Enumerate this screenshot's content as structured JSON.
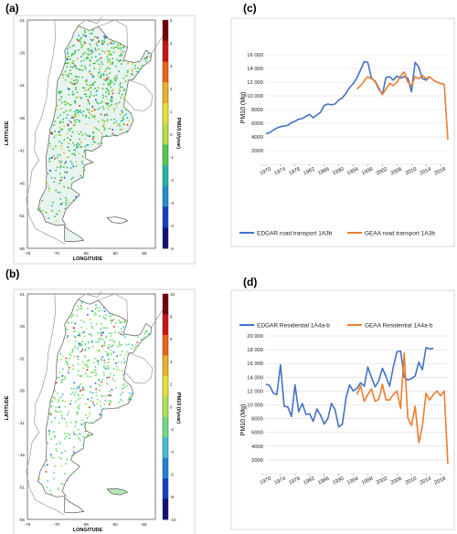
{
  "panels": {
    "a": "(a)",
    "b": "(b)",
    "c": "(c)",
    "d": "(d)"
  },
  "map_a": {
    "ylabel": "LATITUDE",
    "xlabel": "LONGITUDE",
    "lat_ticks": [
      "-21",
      "-26",
      "-31",
      "-36",
      "-41",
      "-46",
      "-51",
      "-56"
    ],
    "lon_ticks": [
      "-75",
      "-70",
      "-65",
      "-60",
      "-55"
    ],
    "colorbar_label": "PM10 (t/year)",
    "colorbar_ticks": [
      "5",
      "4",
      "3",
      "2",
      "1",
      "0",
      "-1",
      "-2",
      "-3",
      "-4",
      "-5"
    ],
    "colors": {
      "low": "#1030c0",
      "mid": "#3cc43c",
      "high": "#c01010"
    }
  },
  "map_b": {
    "ylabel": "LATITUDE",
    "xlabel": "LONGITUDE",
    "lat_ticks": [
      "-21",
      "-26",
      "-31",
      "-36",
      "-41",
      "-46",
      "-51",
      "-56"
    ],
    "lon_ticks": [
      "-75",
      "-70",
      "-65",
      "-60",
      "-55"
    ],
    "colorbar_label": "PM10 (t/year)",
    "colorbar_ticks": [
      "10",
      "8",
      "6",
      "4",
      "2",
      "0",
      "-2",
      "-4",
      "-6",
      "-8",
      "-10"
    ],
    "colors": {
      "low": "#1030c0",
      "mid": "#6fdc6f",
      "high": "#c01010"
    }
  },
  "chart_data": [
    {
      "type": "line",
      "ylabel": "PM10 (Mg)",
      "ylim": [
        0,
        16000
      ],
      "yticks": [
        "-",
        "2000",
        "4000",
        "6000",
        "8000",
        "10 000",
        "12 000",
        "14 000",
        "16 000"
      ],
      "xticks": [
        "1970",
        "1974",
        "1978",
        "1982",
        "1986",
        "1990",
        "1994",
        "1998",
        "2002",
        "2006",
        "2010",
        "2014",
        "2018"
      ],
      "xlim": [
        1970,
        2020
      ],
      "series": [
        {
          "name": "EDGAR road transport 1A3b",
          "color": "#4472c4",
          "x": [
            1970,
            1971,
            1972,
            1973,
            1974,
            1975,
            1976,
            1977,
            1978,
            1979,
            1980,
            1981,
            1982,
            1983,
            1984,
            1985,
            1986,
            1987,
            1988,
            1989,
            1990,
            1991,
            1992,
            1993,
            1994,
            1995,
            1996,
            1997,
            1998,
            1999,
            2000,
            2001,
            2002,
            2003,
            2004,
            2005,
            2006,
            2007,
            2008,
            2009,
            2010,
            2011,
            2012,
            2013,
            2014,
            2015
          ],
          "y": [
            4500,
            4600,
            5000,
            5300,
            5500,
            5600,
            5700,
            6100,
            6300,
            6600,
            6700,
            7000,
            7300,
            6800,
            7200,
            7600,
            8600,
            8800,
            8700,
            8800,
            9400,
            9700,
            10400,
            11200,
            11800,
            12600,
            13800,
            15000,
            14900,
            12600,
            12100,
            11000,
            10200,
            12700,
            12800,
            12300,
            12900,
            12600,
            12800,
            12600,
            10600,
            14900,
            14200,
            12500,
            12300,
            12800
          ]
        },
        {
          "name": "GEAA road transport 1A3b",
          "color": "#ed7d31",
          "x": [
            1995,
            1996,
            1997,
            1998,
            1999,
            2000,
            2001,
            2002,
            2003,
            2004,
            2005,
            2006,
            2007,
            2008,
            2009,
            2010,
            2011,
            2012,
            2013,
            2014,
            2015,
            2016,
            2017,
            2018,
            2019,
            2020
          ],
          "y": [
            11000,
            11500,
            12200,
            12800,
            12500,
            12200,
            11200,
            10200,
            11000,
            11800,
            11500,
            12000,
            12900,
            13500,
            12000,
            11500,
            12800,
            12500,
            13000,
            12500,
            12800,
            12300,
            12000,
            11800,
            11700,
            3600
          ]
        }
      ]
    },
    {
      "type": "line",
      "ylabel": "PM10 (Mg)",
      "ylim": [
        0,
        20000
      ],
      "yticks": [
        "-",
        "2000",
        "4000",
        "6000",
        "8000",
        "10 000",
        "12 000",
        "14 000",
        "16 000",
        "18 000",
        "20 000"
      ],
      "xticks": [
        "1970",
        "1974",
        "1978",
        "1982",
        "1986",
        "1990",
        "1994",
        "1998",
        "2002",
        "2006",
        "2010",
        "2014",
        "2018"
      ],
      "xlim": [
        1970,
        2020
      ],
      "series": [
        {
          "name": "EDGAR Residential 1A4a-b",
          "color": "#4472c4",
          "x": [
            1970,
            1971,
            1972,
            1973,
            1974,
            1975,
            1976,
            1977,
            1978,
            1979,
            1980,
            1981,
            1982,
            1983,
            1984,
            1985,
            1986,
            1987,
            1988,
            1989,
            1990,
            1991,
            1992,
            1993,
            1994,
            1995,
            1996,
            1997,
            1998,
            1999,
            2000,
            2001,
            2002,
            2003,
            2004,
            2005,
            2006,
            2007,
            2008,
            2009,
            2010,
            2011,
            2012,
            2013,
            2014,
            2015,
            2016
          ],
          "y": [
            13000,
            12800,
            11700,
            11500,
            15800,
            9800,
            9700,
            8300,
            12900,
            9000,
            10200,
            8600,
            8700,
            7600,
            9400,
            8500,
            7200,
            8000,
            10200,
            9300,
            6800,
            7200,
            11000,
            12900,
            12000,
            12400,
            13200,
            12700,
            15500,
            14000,
            12600,
            13500,
            15300,
            14100,
            12700,
            15500,
            17700,
            17800,
            14000,
            13600,
            13800,
            14200,
            16200,
            15100,
            18300,
            18100,
            18200
          ]
        },
        {
          "name": "GEAA Residential 1A4a-b",
          "color": "#ed7d31",
          "x": [
            1995,
            1996,
            1997,
            1998,
            1999,
            2000,
            2001,
            2002,
            2003,
            2004,
            2005,
            2006,
            2007,
            2008,
            2009,
            2010,
            2011,
            2012,
            2013,
            2014,
            2015,
            2016,
            2017,
            2018,
            2019,
            2020
          ],
          "y": [
            11500,
            12800,
            10500,
            11500,
            12300,
            10500,
            10800,
            13000,
            10700,
            10700,
            11500,
            12000,
            9500,
            17500,
            8100,
            7000,
            9800,
            4500,
            6900,
            11700,
            10700,
            11500,
            12000,
            11300,
            12000,
            1400
          ]
        }
      ]
    }
  ]
}
